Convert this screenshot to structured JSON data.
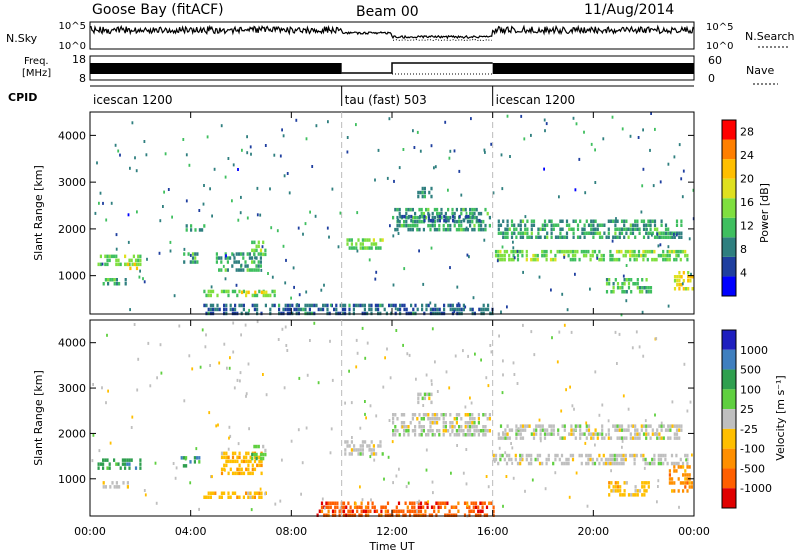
{
  "header": {
    "station": "Goose Bay (fitACF)",
    "beam": "Beam 00",
    "date": "11/Aug/2014"
  },
  "noise_panel": {
    "label": "N.Sky",
    "right_label": "N.Search",
    "tick_top": "10^5",
    "tick_bottom": "10^0",
    "right_tick_top": "10^5",
    "right_tick_bottom": "10^0"
  },
  "freq_panel": {
    "label_line1": "Freq.",
    "label_line2": "[MHz]",
    "right_label": "Nave",
    "tick_top": "18",
    "tick_bottom": "8",
    "right_tick_top": "60",
    "right_tick_bottom": "0"
  },
  "cpid_panel": {
    "label": "CPID",
    "segments": [
      {
        "name": "icescan 1200",
        "start_hour": 0,
        "end_hour": 10
      },
      {
        "name": "tau (fast) 503",
        "start_hour": 10,
        "end_hour": 16
      },
      {
        "name": "icescan 1200",
        "start_hour": 16,
        "end_hour": 24
      }
    ]
  },
  "colors": {
    "power_scale": [
      "#0000ff",
      "#1f3f9f",
      "#2f7f7f",
      "#3fbf5f",
      "#7fdf3f",
      "#dfe01f",
      "#ffbf00",
      "#ff7f00",
      "#ff0000"
    ],
    "velocity_scale": [
      "#1f1fbf",
      "#3f7fbf",
      "#2f9f4f",
      "#5fcf3f",
      "#bfbfbf",
      "#ffbf00",
      "#ff8f00",
      "#ff5f00",
      "#e00000"
    ],
    "axis": "#000000",
    "divider": "#bbbbbb"
  },
  "chart_data": [
    {
      "type": "heatmap",
      "panel": "power",
      "xlabel": "",
      "ylabel": "Slant Range [km]",
      "xlim": [
        0,
        24
      ],
      "ylim": [
        180,
        4500
      ],
      "y_ticks": [
        "1000",
        "2000",
        "3000",
        "4000"
      ],
      "colorbar_label": "Power [dB]",
      "colorbar_ticks": [
        "4",
        "8",
        "12",
        "16",
        "20",
        "24",
        "28"
      ],
      "colorbar_range": [
        0,
        30
      ],
      "features": [
        {
          "t0": 0.3,
          "t1": 2.0,
          "r0": 1250,
          "r1": 1450,
          "level": 14
        },
        {
          "t0": 0.5,
          "t1": 1.5,
          "r0": 800,
          "r1": 950,
          "level": 10
        },
        {
          "t0": 1.3,
          "t1": 1.9,
          "r0": 1180,
          "r1": 1280,
          "level": 18
        },
        {
          "t0": 3.7,
          "t1": 4.3,
          "r0": 1250,
          "r1": 1500,
          "level": 10
        },
        {
          "t0": 3.8,
          "t1": 4.5,
          "r0": 1950,
          "r1": 2100,
          "level": 8
        },
        {
          "t0": 4.5,
          "t1": 7.3,
          "r0": 550,
          "r1": 700,
          "level": 14
        },
        {
          "t0": 6.0,
          "t1": 7.0,
          "r0": 600,
          "r1": 680,
          "level": 22
        },
        {
          "t0": 5.0,
          "t1": 6.8,
          "r0": 1100,
          "r1": 1500,
          "level": 10
        },
        {
          "t0": 6.4,
          "t1": 7.0,
          "r0": 1450,
          "r1": 1750,
          "level": 14
        },
        {
          "t0": 10.1,
          "t1": 11.6,
          "r0": 1550,
          "r1": 1800,
          "level": 14
        },
        {
          "t0": 12.0,
          "t1": 15.9,
          "r0": 1950,
          "r1": 2450,
          "level": 10
        },
        {
          "t0": 12.2,
          "t1": 15.5,
          "r0": 2150,
          "r1": 2300,
          "level": 6
        },
        {
          "t0": 13.0,
          "t1": 13.6,
          "r0": 2700,
          "r1": 2900,
          "level": 8
        },
        {
          "t0": 16.0,
          "t1": 23.7,
          "r0": 1300,
          "r1": 1550,
          "level": 14
        },
        {
          "t0": 16.2,
          "t1": 23.5,
          "r0": 1850,
          "r1": 2200,
          "level": 10
        },
        {
          "t0": 20.5,
          "t1": 22.3,
          "r0": 650,
          "r1": 950,
          "level": 12
        },
        {
          "t0": 23.2,
          "t1": 23.9,
          "r0": 700,
          "r1": 1100,
          "level": 20
        },
        {
          "t0": 4.5,
          "t1": 16.0,
          "r0": 180,
          "r1": 400,
          "level": 6
        }
      ]
    },
    {
      "type": "heatmap",
      "panel": "velocity",
      "xlabel": "Time UT",
      "ylabel": "Slant Range [km]",
      "xlim": [
        0,
        24
      ],
      "ylim": [
        180,
        4500
      ],
      "x_ticks": [
        "00:00",
        "04:00",
        "08:00",
        "12:00",
        "16:00",
        "20:00",
        "00:00"
      ],
      "y_ticks": [
        "1000",
        "2000",
        "3000",
        "4000"
      ],
      "colorbar_label": "Velocity [m s⁻¹]",
      "colorbar_ticks": [
        "1000",
        "500",
        "100",
        "25",
        "-25",
        "-100",
        "-500",
        "-1000"
      ],
      "features": [
        {
          "t0": 0.3,
          "t1": 2.0,
          "r0": 1200,
          "r1": 1450,
          "vclass": 2
        },
        {
          "t0": 0.5,
          "t1": 1.5,
          "r0": 800,
          "r1": 950,
          "vclass": 4
        },
        {
          "t0": 3.6,
          "t1": 4.4,
          "r0": 1250,
          "r1": 1500,
          "vclass": 2
        },
        {
          "t0": 4.5,
          "t1": 7.3,
          "r0": 550,
          "r1": 720,
          "vclass": 5
        },
        {
          "t0": 5.2,
          "t1": 6.8,
          "r0": 1100,
          "r1": 1600,
          "vclass": 5
        },
        {
          "t0": 6.4,
          "t1": 7.0,
          "r0": 1450,
          "r1": 1750,
          "vclass": 3
        },
        {
          "t0": 10.1,
          "t1": 11.6,
          "r0": 1550,
          "r1": 1850,
          "vclass": 4
        },
        {
          "t0": 12.0,
          "t1": 15.9,
          "r0": 1950,
          "r1": 2450,
          "vclass": 4
        },
        {
          "t0": 13.0,
          "t1": 13.6,
          "r0": 2700,
          "r1": 2900,
          "vclass": 4
        },
        {
          "t0": 16.0,
          "t1": 23.7,
          "r0": 1300,
          "r1": 1550,
          "vclass": 4
        },
        {
          "t0": 16.2,
          "t1": 23.5,
          "r0": 1850,
          "r1": 2200,
          "vclass": 4
        },
        {
          "t0": 20.5,
          "t1": 22.3,
          "r0": 650,
          "r1": 950,
          "vclass": 5
        },
        {
          "t0": 23.0,
          "t1": 23.9,
          "r0": 700,
          "r1": 1300,
          "vclass": 6
        },
        {
          "t0": 9.0,
          "t1": 16.0,
          "r0": 180,
          "r1": 500,
          "vclass": 7
        }
      ]
    }
  ]
}
